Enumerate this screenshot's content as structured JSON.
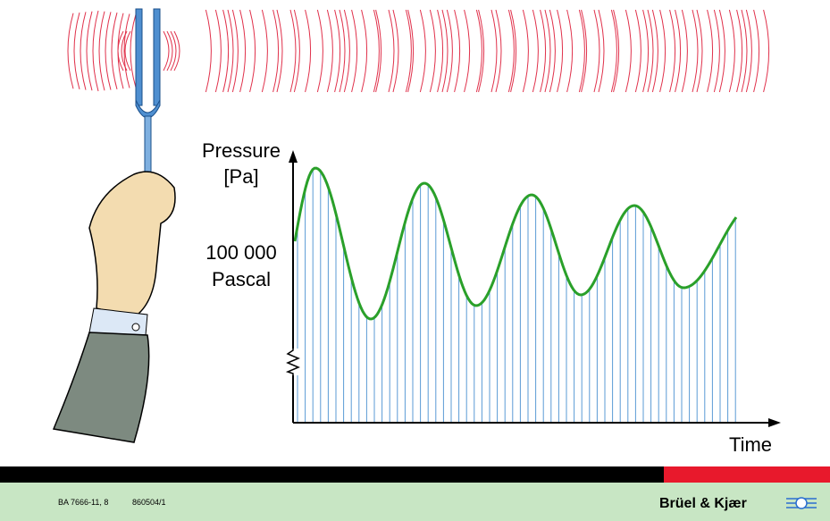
{
  "axis": {
    "y_label_1": "Pressure",
    "y_label_2": "[Pa]",
    "level_1": "100 000",
    "level_2": "Pascal",
    "x_label": "Time"
  },
  "footer": {
    "code": "BA 7666-11, 8",
    "number": "860504/1",
    "brand": "Brüel & Kjær"
  }
}
